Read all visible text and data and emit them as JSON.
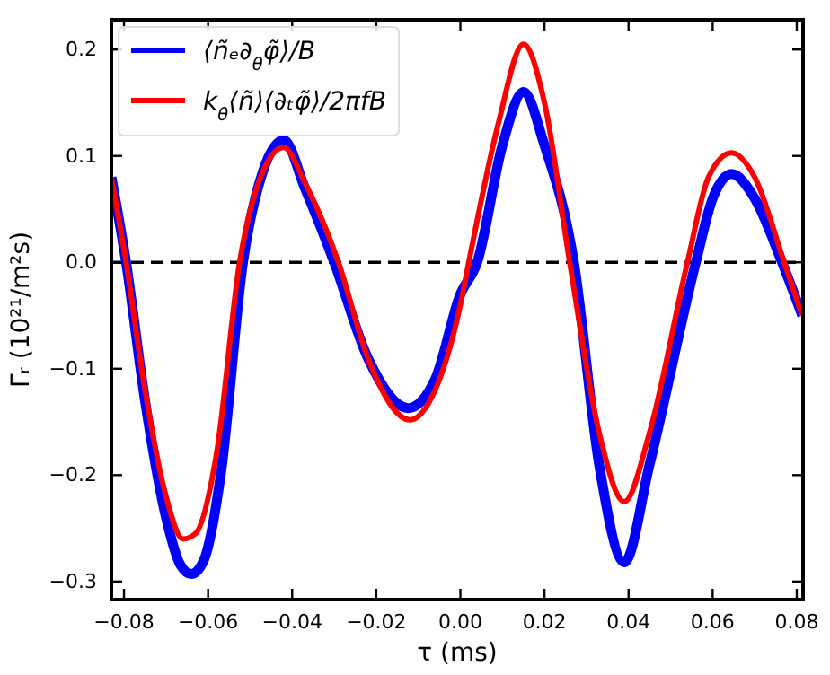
{
  "chart_data": {
    "type": "line",
    "xlabel": "τ (ms)",
    "ylabel": "Γᵣ (10²¹/m²s)",
    "xlim": [
      -0.083,
      0.0815
    ],
    "ylim": [
      -0.317,
      0.228
    ],
    "xticks": [
      {
        "value": -0.08,
        "label": "−0.08"
      },
      {
        "value": -0.06,
        "label": "−0.06"
      },
      {
        "value": -0.04,
        "label": "−0.04"
      },
      {
        "value": -0.02,
        "label": "−0.02"
      },
      {
        "value": 0,
        "label": "0.00"
      },
      {
        "value": 0.02,
        "label": "0.02"
      },
      {
        "value": 0.04,
        "label": "0.04"
      },
      {
        "value": 0.06,
        "label": "0.06"
      },
      {
        "value": 0.08,
        "label": "0.08"
      }
    ],
    "yticks": [
      {
        "value": -0.3,
        "label": "−0.3"
      },
      {
        "value": -0.2,
        "label": "−0.2"
      },
      {
        "value": -0.1,
        "label": "−0.1"
      },
      {
        "value": 0,
        "label": "0.0"
      },
      {
        "value": 0.1,
        "label": "0.1"
      },
      {
        "value": 0.2,
        "label": "0.2"
      }
    ],
    "ref_lines": [
      {
        "axis": "y",
        "value": 0,
        "color": "#000000",
        "line_style": "dashed"
      }
    ],
    "legend": "top left",
    "grid": false,
    "series": [
      {
        "name": "⟨ñₑ∂$_{θ}$φ̃⟩/B",
        "color": "#0000ff",
        "x": [
          -0.083,
          -0.0795,
          -0.075,
          -0.07,
          -0.0665,
          -0.064,
          -0.061,
          -0.057,
          -0.0517,
          -0.047,
          -0.042,
          -0.037,
          -0.03,
          -0.022,
          -0.0124,
          -0.006,
          0.0,
          0.004,
          0.01,
          0.015,
          0.02,
          0.027,
          0.033,
          0.039,
          0.045,
          0.056,
          0.06,
          0.0645,
          0.07,
          0.0765,
          0.0813
        ],
        "values": [
          0.08,
          0.0,
          -0.13,
          -0.24,
          -0.285,
          -0.293,
          -0.28,
          -0.2,
          0.0,
          0.085,
          0.115,
          0.07,
          0.0,
          -0.09,
          -0.137,
          -0.11,
          -0.03,
          0.0,
          0.11,
          0.16,
          0.11,
          0.0,
          -0.19,
          -0.282,
          -0.19,
          0.0,
          0.06,
          0.083,
          0.06,
          0.0,
          -0.05
        ]
      },
      {
        "name": "k$_{θ}$⟨ñ⟩⟨∂ₜφ̃⟩/2πfB",
        "color": "#ff0000",
        "x": [
          -0.083,
          -0.0795,
          -0.075,
          -0.07,
          -0.066,
          -0.063,
          -0.058,
          -0.0525,
          -0.047,
          -0.042,
          -0.037,
          -0.029,
          -0.022,
          -0.012,
          -0.006,
          0.0,
          0.002,
          0.009,
          0.015,
          0.02,
          0.026,
          0.033,
          0.039,
          0.045,
          0.054,
          0.059,
          0.0645,
          0.07,
          0.077,
          0.0813
        ],
        "values": [
          0.08,
          0.0,
          -0.12,
          -0.22,
          -0.26,
          -0.255,
          -0.18,
          0.0,
          0.085,
          0.108,
          0.075,
          0.0,
          -0.09,
          -0.148,
          -0.12,
          -0.04,
          0.0,
          0.13,
          0.205,
          0.15,
          0.0,
          -0.16,
          -0.225,
          -0.16,
          0.0,
          0.08,
          0.103,
          0.08,
          0.0,
          -0.05
        ]
      }
    ]
  }
}
